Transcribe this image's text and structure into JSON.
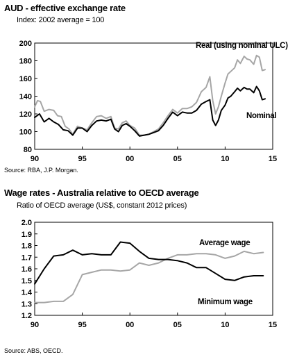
{
  "chart_data": [
    {
      "type": "line",
      "title": "AUD - effective exchange rate",
      "subtitle": "Index: 2002 average = 100",
      "source": "Source: RBA, J.P. Morgan.",
      "xlim": [
        1990,
        2015
      ],
      "ylim": [
        80,
        200
      ],
      "xticks": [
        1990,
        1995,
        2000,
        2005,
        2010,
        2015
      ],
      "xtick_labels": [
        "90",
        "95",
        "00",
        "05",
        "10",
        "15"
      ],
      "yticks": [
        80,
        100,
        120,
        140,
        160,
        180,
        200
      ],
      "ytick_labels": [
        "80",
        "100",
        "120",
        "140",
        "160",
        "180",
        "200"
      ],
      "grid": false,
      "series": [
        {
          "name": "Real (using nominal ULC)",
          "color": "#a6a6a6",
          "points": [
            [
              1990.0,
              128
            ],
            [
              1990.3,
              135
            ],
            [
              1990.6,
              134
            ],
            [
              1991.0,
              123
            ],
            [
              1991.5,
              125
            ],
            [
              1992.0,
              124
            ],
            [
              1992.4,
              118
            ],
            [
              1992.8,
              117
            ],
            [
              1993.2,
              106
            ],
            [
              1993.6,
              103
            ],
            [
              1994.0,
              97
            ],
            [
              1994.5,
              106
            ],
            [
              1995.0,
              104
            ],
            [
              1995.5,
              102
            ],
            [
              1996.0,
              110
            ],
            [
              1996.5,
              117
            ],
            [
              1997.0,
              118
            ],
            [
              1997.5,
              115
            ],
            [
              1998.0,
              117
            ],
            [
              1998.4,
              104
            ],
            [
              1998.8,
              103
            ],
            [
              1999.2,
              110
            ],
            [
              1999.6,
              112
            ],
            [
              2000.0,
              107
            ],
            [
              2000.5,
              104
            ],
            [
              2001.0,
              96
            ],
            [
              2001.5,
              96
            ],
            [
              2002.0,
              97
            ],
            [
              2002.5,
              100
            ],
            [
              2003.0,
              103
            ],
            [
              2003.5,
              110
            ],
            [
              2004.0,
              118
            ],
            [
              2004.5,
              125
            ],
            [
              2005.0,
              121
            ],
            [
              2005.5,
              126
            ],
            [
              2006.0,
              126
            ],
            [
              2006.5,
              128
            ],
            [
              2007.0,
              133
            ],
            [
              2007.5,
              145
            ],
            [
              2008.0,
              150
            ],
            [
              2008.4,
              162
            ],
            [
              2008.7,
              135
            ],
            [
              2009.0,
              120
            ],
            [
              2009.3,
              128
            ],
            [
              2009.6,
              140
            ],
            [
              2010.0,
              155
            ],
            [
              2010.3,
              165
            ],
            [
              2010.6,
              168
            ],
            [
              2011.0,
              172
            ],
            [
              2011.3,
              181
            ],
            [
              2011.6,
              177
            ],
            [
              2012.0,
              185
            ],
            [
              2012.3,
              182
            ],
            [
              2012.6,
              181
            ],
            [
              2013.0,
              176
            ],
            [
              2013.3,
              186
            ],
            [
              2013.6,
              184
            ],
            [
              2013.9,
              169
            ],
            [
              2014.2,
              170
            ]
          ]
        },
        {
          "name": "Nominal",
          "color": "#000000",
          "points": [
            [
              1990.0,
              116
            ],
            [
              1990.5,
              120
            ],
            [
              1991.0,
              111
            ],
            [
              1991.5,
              115
            ],
            [
              1992.0,
              111
            ],
            [
              1992.5,
              108
            ],
            [
              1993.0,
              102
            ],
            [
              1993.5,
              101
            ],
            [
              1994.0,
              96
            ],
            [
              1994.5,
              104
            ],
            [
              1995.0,
              104
            ],
            [
              1995.5,
              100
            ],
            [
              1996.0,
              107
            ],
            [
              1996.5,
              112
            ],
            [
              1997.0,
              113
            ],
            [
              1997.5,
              112
            ],
            [
              1998.0,
              114
            ],
            [
              1998.4,
              103
            ],
            [
              1998.8,
              100
            ],
            [
              1999.2,
              107
            ],
            [
              1999.6,
              109
            ],
            [
              2000.0,
              106
            ],
            [
              2000.5,
              101
            ],
            [
              2001.0,
              95
            ],
            [
              2001.5,
              96
            ],
            [
              2002.0,
              97
            ],
            [
              2002.5,
              99
            ],
            [
              2003.0,
              101
            ],
            [
              2003.5,
              107
            ],
            [
              2004.0,
              115
            ],
            [
              2004.5,
              122
            ],
            [
              2005.0,
              118
            ],
            [
              2005.5,
              122
            ],
            [
              2006.0,
              121
            ],
            [
              2006.5,
              121
            ],
            [
              2007.0,
              124
            ],
            [
              2007.5,
              131
            ],
            [
              2008.0,
              134
            ],
            [
              2008.4,
              136
            ],
            [
              2008.7,
              113
            ],
            [
              2009.0,
              107
            ],
            [
              2009.3,
              113
            ],
            [
              2009.6,
              124
            ],
            [
              2010.0,
              130
            ],
            [
              2010.3,
              138
            ],
            [
              2010.6,
              140
            ],
            [
              2011.0,
              145
            ],
            [
              2011.3,
              149
            ],
            [
              2011.6,
              146
            ],
            [
              2012.0,
              150
            ],
            [
              2012.3,
              148
            ],
            [
              2012.6,
              148
            ],
            [
              2013.0,
              144
            ],
            [
              2013.3,
              151
            ],
            [
              2013.6,
              146
            ],
            [
              2013.9,
              136
            ],
            [
              2014.2,
              137
            ]
          ]
        }
      ],
      "annotations": [
        "Real (using nominal ULC)",
        "Nominal"
      ]
    },
    {
      "type": "line",
      "title": "Wage rates - Australia relative to OECD average",
      "subtitle": "Ratio of OECD average (US$, constant 2012 prices)",
      "source": "Source: ABS, OECD.",
      "xlim": [
        1990,
        2015
      ],
      "ylim": [
        1.2,
        2.0
      ],
      "xticks": [
        1990,
        1995,
        2000,
        2005,
        2010,
        2015
      ],
      "xtick_labels": [
        "90",
        "95",
        "00",
        "05",
        "10",
        "15"
      ],
      "yticks": [
        1.2,
        1.3,
        1.4,
        1.5,
        1.6,
        1.7,
        1.8,
        1.9,
        2.0
      ],
      "ytick_labels": [
        "1.2",
        "1.3",
        "1.4",
        "1.5",
        "1.6",
        "1.7",
        "1.8",
        "1.9",
        "2.0"
      ],
      "grid": false,
      "series": [
        {
          "name": "Average wage",
          "color": "#a6a6a6",
          "points": [
            [
              1990,
              1.31
            ],
            [
              1991,
              1.31
            ],
            [
              1992,
              1.32
            ],
            [
              1993,
              1.32
            ],
            [
              1994,
              1.38
            ],
            [
              1995,
              1.55
            ],
            [
              1996,
              1.57
            ],
            [
              1997,
              1.59
            ],
            [
              1998,
              1.59
            ],
            [
              1999,
              1.58
            ],
            [
              2000,
              1.59
            ],
            [
              2001,
              1.65
            ],
            [
              2002,
              1.63
            ],
            [
              2003,
              1.65
            ],
            [
              2004,
              1.69
            ],
            [
              2005,
              1.72
            ],
            [
              2006,
              1.72
            ],
            [
              2007,
              1.73
            ],
            [
              2008,
              1.73
            ],
            [
              2009,
              1.72
            ],
            [
              2010,
              1.69
            ],
            [
              2011,
              1.71
            ],
            [
              2012,
              1.75
            ],
            [
              2013,
              1.73
            ],
            [
              2014,
              1.74
            ]
          ]
        },
        {
          "name": "Minimum wage",
          "color": "#000000",
          "points": [
            [
              1990,
              1.47
            ],
            [
              1991,
              1.6
            ],
            [
              1992,
              1.71
            ],
            [
              1993,
              1.72
            ],
            [
              1994,
              1.76
            ],
            [
              1995,
              1.72
            ],
            [
              1996,
              1.73
            ],
            [
              1997,
              1.72
            ],
            [
              1998,
              1.72
            ],
            [
              1999,
              1.83
            ],
            [
              2000,
              1.82
            ],
            [
              2001,
              1.75
            ],
            [
              2002,
              1.69
            ],
            [
              2003,
              1.68
            ],
            [
              2004,
              1.68
            ],
            [
              2005,
              1.67
            ],
            [
              2006,
              1.65
            ],
            [
              2007,
              1.61
            ],
            [
              2008,
              1.61
            ],
            [
              2009,
              1.56
            ],
            [
              2010,
              1.51
            ],
            [
              2011,
              1.5
            ],
            [
              2012,
              1.53
            ],
            [
              2013,
              1.54
            ],
            [
              2014,
              1.54
            ]
          ]
        }
      ],
      "annotations": [
        "Average wage",
        "Minimum wage"
      ]
    }
  ]
}
